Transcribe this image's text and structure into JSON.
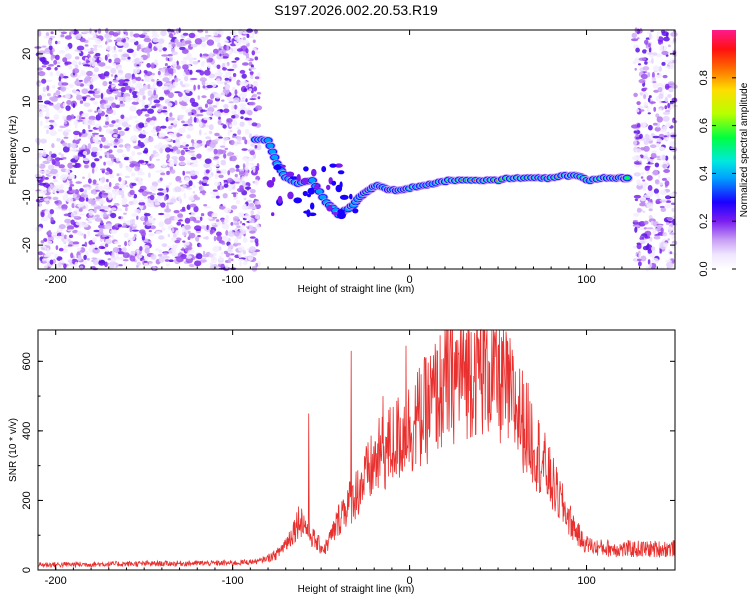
{
  "title": "S197.2026.002.20.53.R19",
  "chart_data": [
    {
      "type": "heatmap",
      "name": "spectrogram",
      "xlabel": "Height of straight line (km)",
      "ylabel": "Frequency (Hz)",
      "xlim": [
        -210,
        150
      ],
      "ylim": [
        -25,
        25
      ],
      "xticks": [
        -200,
        -100,
        0,
        100
      ],
      "yticks": [
        -20,
        -10,
        0,
        10,
        20
      ],
      "noise_regions": [
        {
          "x_from": -210,
          "x_to": -85,
          "level": "dense"
        },
        {
          "x_from": 127,
          "x_to": 150,
          "level": "dense"
        }
      ],
      "signal_track": [
        {
          "x": -87,
          "y": 2.0,
          "amp": 0.35
        },
        {
          "x": -80,
          "y": 2.0,
          "amp": 0.45
        },
        {
          "x": -75,
          "y": -3.0,
          "amp": 0.3
        },
        {
          "x": -70,
          "y": -6.0,
          "amp": 0.3
        },
        {
          "x": -63,
          "y": -7.0,
          "amp": 0.3
        },
        {
          "x": -55,
          "y": -6.5,
          "amp": 0.35
        },
        {
          "x": -47,
          "y": -11.0,
          "amp": 0.3
        },
        {
          "x": -40,
          "y": -13.5,
          "amp": 0.3
        },
        {
          "x": -33,
          "y": -12.0,
          "amp": 0.35
        },
        {
          "x": -28,
          "y": -10.0,
          "amp": 0.5
        },
        {
          "x": -23,
          "y": -8.5,
          "amp": 0.6
        },
        {
          "x": -18,
          "y": -7.5,
          "amp": 0.4
        },
        {
          "x": -12,
          "y": -8.5,
          "amp": 0.35
        },
        {
          "x": -6,
          "y": -8.5,
          "amp": 0.6
        },
        {
          "x": 0,
          "y": -8.0,
          "amp": 0.6
        },
        {
          "x": 8,
          "y": -7.5,
          "amp": 0.45
        },
        {
          "x": 15,
          "y": -7.0,
          "amp": 0.55
        },
        {
          "x": 22,
          "y": -6.5,
          "amp": 0.6
        },
        {
          "x": 30,
          "y": -6.5,
          "amp": 0.95
        },
        {
          "x": 40,
          "y": -6.5,
          "amp": 0.95
        },
        {
          "x": 48,
          "y": -6.5,
          "amp": 0.9
        },
        {
          "x": 57,
          "y": -6.0,
          "amp": 0.7
        },
        {
          "x": 65,
          "y": -6.0,
          "amp": 0.65
        },
        {
          "x": 73,
          "y": -6.0,
          "amp": 0.75
        },
        {
          "x": 80,
          "y": -6.0,
          "amp": 0.9
        },
        {
          "x": 88,
          "y": -5.5,
          "amp": 0.65
        },
        {
          "x": 95,
          "y": -5.5,
          "amp": 0.6
        },
        {
          "x": 102,
          "y": -6.5,
          "amp": 0.55
        },
        {
          "x": 110,
          "y": -6.0,
          "amp": 0.7
        },
        {
          "x": 117,
          "y": -6.0,
          "amp": 0.85
        },
        {
          "x": 123,
          "y": -6.0,
          "amp": 0.65
        }
      ],
      "colorbar": {
        "label": "Normalized spectral amplitude",
        "range": [
          0,
          1
        ],
        "ticks": [
          0.0,
          0.2,
          0.4,
          0.6,
          0.8
        ]
      }
    },
    {
      "type": "line",
      "name": "snr",
      "xlabel": "Height of straight line (km)",
      "ylabel": "SNR (10 * v/v)",
      "xlim": [
        -210,
        150
      ],
      "ylim": [
        0,
        690
      ],
      "xticks": [
        -200,
        -100,
        0,
        100
      ],
      "yticks": [
        0,
        200,
        400,
        600
      ],
      "color": "#e8312f",
      "envelope": [
        {
          "x": -210,
          "y": 15
        },
        {
          "x": -150,
          "y": 18
        },
        {
          "x": -100,
          "y": 20
        },
        {
          "x": -85,
          "y": 25
        },
        {
          "x": -75,
          "y": 45
        },
        {
          "x": -68,
          "y": 90
        },
        {
          "x": -62,
          "y": 150
        },
        {
          "x": -58,
          "y": 120
        },
        {
          "x": -53,
          "y": 80
        },
        {
          "x": -48,
          "y": 60
        },
        {
          "x": -43,
          "y": 110
        },
        {
          "x": -38,
          "y": 170
        },
        {
          "x": -33,
          "y": 200
        },
        {
          "x": -28,
          "y": 240
        },
        {
          "x": -23,
          "y": 280
        },
        {
          "x": -18,
          "y": 320
        },
        {
          "x": -12,
          "y": 350
        },
        {
          "x": -6,
          "y": 380
        },
        {
          "x": 0,
          "y": 410
        },
        {
          "x": 8,
          "y": 450
        },
        {
          "x": 15,
          "y": 500
        },
        {
          "x": 22,
          "y": 540
        },
        {
          "x": 30,
          "y": 570
        },
        {
          "x": 38,
          "y": 585
        },
        {
          "x": 45,
          "y": 575
        },
        {
          "x": 52,
          "y": 540
        },
        {
          "x": 60,
          "y": 470
        },
        {
          "x": 68,
          "y": 390
        },
        {
          "x": 76,
          "y": 300
        },
        {
          "x": 84,
          "y": 210
        },
        {
          "x": 92,
          "y": 130
        },
        {
          "x": 98,
          "y": 80
        },
        {
          "x": 105,
          "y": 65
        },
        {
          "x": 120,
          "y": 60
        },
        {
          "x": 135,
          "y": 60
        },
        {
          "x": 150,
          "y": 62
        }
      ],
      "spikes": [
        {
          "x": -57,
          "y": 450
        },
        {
          "x": -33,
          "y": 630
        },
        {
          "x": -2,
          "y": 645
        },
        {
          "x": -15,
          "y": 500
        },
        {
          "x": 38,
          "y": 690
        }
      ]
    }
  ]
}
